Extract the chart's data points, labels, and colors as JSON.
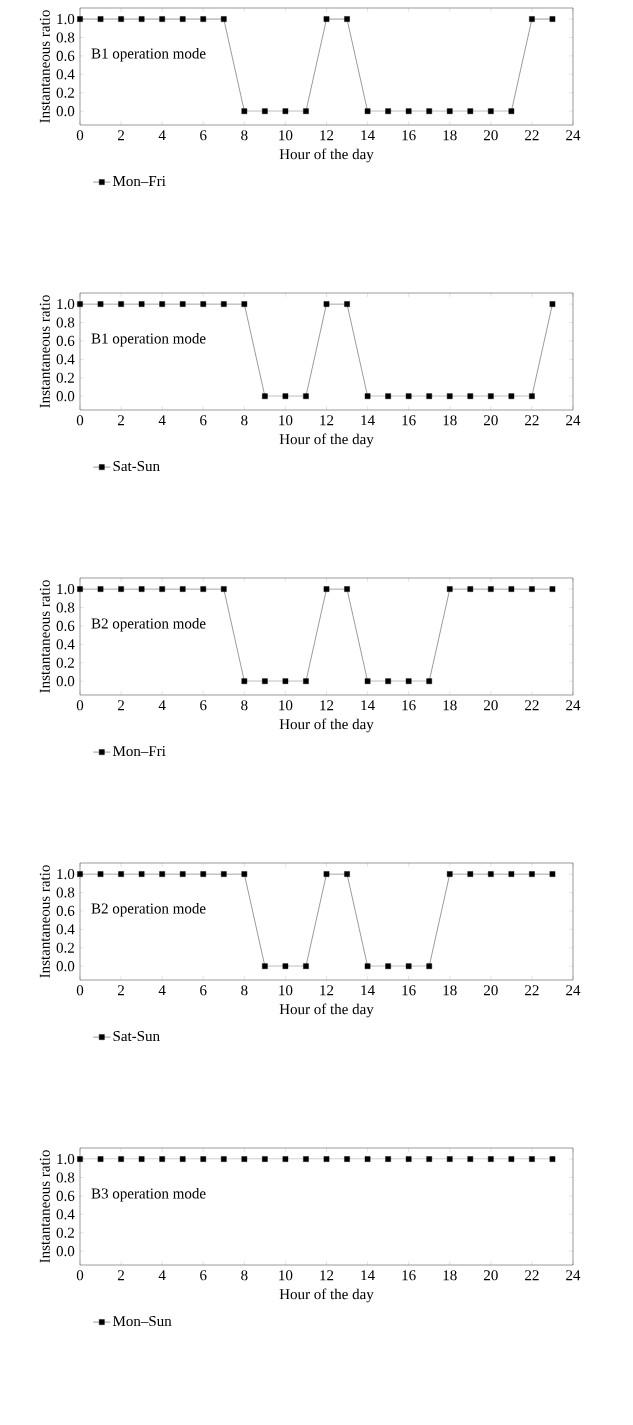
{
  "chart_data": [
    {
      "type": "line",
      "xlabel": "Hour of the day",
      "ylabel": "Instantaneous ratio",
      "annotations": [
        "B1 operation mode"
      ],
      "x": [
        0,
        1,
        2,
        3,
        4,
        5,
        6,
        7,
        8,
        9,
        10,
        11,
        12,
        13,
        14,
        15,
        16,
        17,
        18,
        19,
        20,
        21,
        22,
        23
      ],
      "series": [
        {
          "name": "Mon–Fri",
          "color": "#000000",
          "values": [
            1,
            1,
            1,
            1,
            1,
            1,
            1,
            1,
            0,
            0,
            0,
            0,
            1,
            1,
            0,
            0,
            0,
            0,
            0,
            0,
            0,
            0,
            1,
            1
          ]
        }
      ],
      "xlim": [
        0,
        24
      ],
      "xticks": [
        0,
        2,
        4,
        6,
        8,
        10,
        12,
        14,
        16,
        18,
        20,
        22,
        24
      ],
      "ylim": [
        -0.15,
        1.12
      ],
      "yticks": [
        {
          "value": 0,
          "label": "0.0"
        },
        {
          "value": 0.2,
          "label": "0.2"
        },
        {
          "value": 0.4,
          "label": "0.4"
        },
        {
          "value": 0.6,
          "label": "0.6"
        },
        {
          "value": 0.8,
          "label": "0.8"
        },
        {
          "value": 1,
          "label": "1.0"
        }
      ],
      "marker": "square",
      "line_style": "solid",
      "legend": "bottom"
    },
    {
      "type": "line",
      "xlabel": "Hour of the day",
      "ylabel": "Instantaneous ratio",
      "annotations": [
        "B1 operation mode"
      ],
      "x": [
        0,
        1,
        2,
        3,
        4,
        5,
        6,
        7,
        8,
        9,
        10,
        11,
        12,
        13,
        14,
        15,
        16,
        17,
        18,
        19,
        20,
        21,
        22,
        23
      ],
      "series": [
        {
          "name": "Sat-Sun",
          "color": "#000000",
          "values": [
            1,
            1,
            1,
            1,
            1,
            1,
            1,
            1,
            1,
            0,
            0,
            0,
            1,
            1,
            0,
            0,
            0,
            0,
            0,
            0,
            0,
            0,
            0,
            1
          ]
        }
      ],
      "xlim": [
        0,
        24
      ],
      "xticks": [
        0,
        2,
        4,
        6,
        8,
        10,
        12,
        14,
        16,
        18,
        20,
        22,
        24
      ],
      "ylim": [
        -0.15,
        1.12
      ],
      "yticks": [
        {
          "value": 0,
          "label": "0.0"
        },
        {
          "value": 0.2,
          "label": "0.2"
        },
        {
          "value": 0.4,
          "label": "0.4"
        },
        {
          "value": 0.6,
          "label": "0.6"
        },
        {
          "value": 0.8,
          "label": "0.8"
        },
        {
          "value": 1,
          "label": "1.0"
        }
      ],
      "marker": "square",
      "line_style": "solid",
      "legend": "bottom"
    },
    {
      "type": "line",
      "xlabel": "Hour of the day",
      "ylabel": "Instantaneous ratio",
      "annotations": [
        "B2 operation mode"
      ],
      "x": [
        0,
        1,
        2,
        3,
        4,
        5,
        6,
        7,
        8,
        9,
        10,
        11,
        12,
        13,
        14,
        15,
        16,
        17,
        18,
        19,
        20,
        21,
        22,
        23
      ],
      "series": [
        {
          "name": "Mon–Fri",
          "color": "#000000",
          "values": [
            1,
            1,
            1,
            1,
            1,
            1,
            1,
            1,
            0,
            0,
            0,
            0,
            1,
            1,
            0,
            0,
            0,
            0,
            1,
            1,
            1,
            1,
            1,
            1
          ]
        }
      ],
      "xlim": [
        0,
        24
      ],
      "xticks": [
        0,
        2,
        4,
        6,
        8,
        10,
        12,
        14,
        16,
        18,
        20,
        22,
        24
      ],
      "ylim": [
        -0.15,
        1.12
      ],
      "yticks": [
        {
          "value": 0,
          "label": "0.0"
        },
        {
          "value": 0.2,
          "label": "0.2"
        },
        {
          "value": 0.4,
          "label": "0.4"
        },
        {
          "value": 0.6,
          "label": "0.6"
        },
        {
          "value": 0.8,
          "label": "0.8"
        },
        {
          "value": 1,
          "label": "1.0"
        }
      ],
      "marker": "square",
      "line_style": "solid",
      "legend": "bottom"
    },
    {
      "type": "line",
      "xlabel": "Hour of the day",
      "ylabel": "Instantaneous ratio",
      "annotations": [
        "B2 operation mode"
      ],
      "x": [
        0,
        1,
        2,
        3,
        4,
        5,
        6,
        7,
        8,
        9,
        10,
        11,
        12,
        13,
        14,
        15,
        16,
        17,
        18,
        19,
        20,
        21,
        22,
        23
      ],
      "series": [
        {
          "name": "Sat-Sun",
          "color": "#000000",
          "values": [
            1,
            1,
            1,
            1,
            1,
            1,
            1,
            1,
            1,
            0,
            0,
            0,
            1,
            1,
            0,
            0,
            0,
            0,
            1,
            1,
            1,
            1,
            1,
            1
          ]
        }
      ],
      "xlim": [
        0,
        24
      ],
      "xticks": [
        0,
        2,
        4,
        6,
        8,
        10,
        12,
        14,
        16,
        18,
        20,
        22,
        24
      ],
      "ylim": [
        -0.15,
        1.12
      ],
      "yticks": [
        {
          "value": 0,
          "label": "0.0"
        },
        {
          "value": 0.2,
          "label": "0.2"
        },
        {
          "value": 0.4,
          "label": "0.4"
        },
        {
          "value": 0.6,
          "label": "0.6"
        },
        {
          "value": 0.8,
          "label": "0.8"
        },
        {
          "value": 1,
          "label": "1.0"
        }
      ],
      "marker": "square",
      "line_style": "solid",
      "legend": "bottom"
    },
    {
      "type": "line",
      "xlabel": "Hour of the day",
      "ylabel": "Instantaneous ratio",
      "annotations": [
        "B3 operation mode"
      ],
      "x": [
        0,
        1,
        2,
        3,
        4,
        5,
        6,
        7,
        8,
        9,
        10,
        11,
        12,
        13,
        14,
        15,
        16,
        17,
        18,
        19,
        20,
        21,
        22,
        23
      ],
      "series": [
        {
          "name": "Mon–Sun",
          "color": "#000000",
          "values": [
            1,
            1,
            1,
            1,
            1,
            1,
            1,
            1,
            1,
            1,
            1,
            1,
            1,
            1,
            1,
            1,
            1,
            1,
            1,
            1,
            1,
            1,
            1,
            1
          ]
        }
      ],
      "xlim": [
        0,
        24
      ],
      "xticks": [
        0,
        2,
        4,
        6,
        8,
        10,
        12,
        14,
        16,
        18,
        20,
        22,
        24
      ],
      "ylim": [
        -0.15,
        1.12
      ],
      "yticks": [
        {
          "value": 0,
          "label": "0.0"
        },
        {
          "value": 0.2,
          "label": "0.2"
        },
        {
          "value": 0.4,
          "label": "0.4"
        },
        {
          "value": 0.6,
          "label": "0.6"
        },
        {
          "value": 0.8,
          "label": "0.8"
        },
        {
          "value": 1,
          "label": "1.0"
        }
      ],
      "marker": "square",
      "line_style": "solid",
      "legend": "bottom"
    }
  ]
}
